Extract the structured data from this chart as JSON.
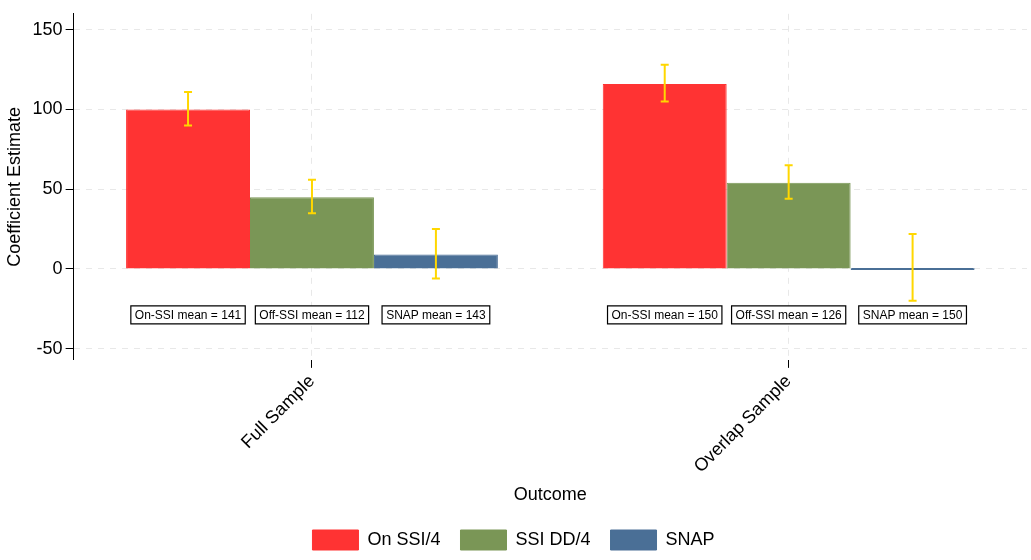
{
  "chart_data": {
    "type": "bar",
    "xlabel": "Outcome",
    "ylabel": "Coefficient Estimate",
    "categories": [
      "Full Sample",
      "Overlap Sample"
    ],
    "series": [
      {
        "name": "On SSI/4",
        "color": "#ff3333",
        "values": [
          100,
          116
        ],
        "errors": [
          [
            90,
            111
          ],
          [
            105,
            128
          ]
        ]
      },
      {
        "name": "SSI DD/4",
        "color": "#7a9656",
        "values": [
          45,
          54
        ],
        "errors": [
          [
            35,
            56
          ],
          [
            44,
            65
          ]
        ]
      },
      {
        "name": "SNAP",
        "color": "#4a6f96",
        "values": [
          9,
          0
        ],
        "errors": [
          [
            -6,
            25
          ],
          [
            -20,
            22
          ]
        ]
      }
    ],
    "annotations": [
      "On-SSI mean = 141",
      "Off-SSI mean = 112",
      "SNAP mean = 143",
      "On-SSI mean = 150",
      "Off-SSI mean = 126",
      "SNAP mean = 150"
    ],
    "ylim": [
      -57,
      160
    ],
    "yticks": [
      -50,
      0,
      50,
      100,
      150
    ],
    "grid": true,
    "legend": "bottom"
  }
}
